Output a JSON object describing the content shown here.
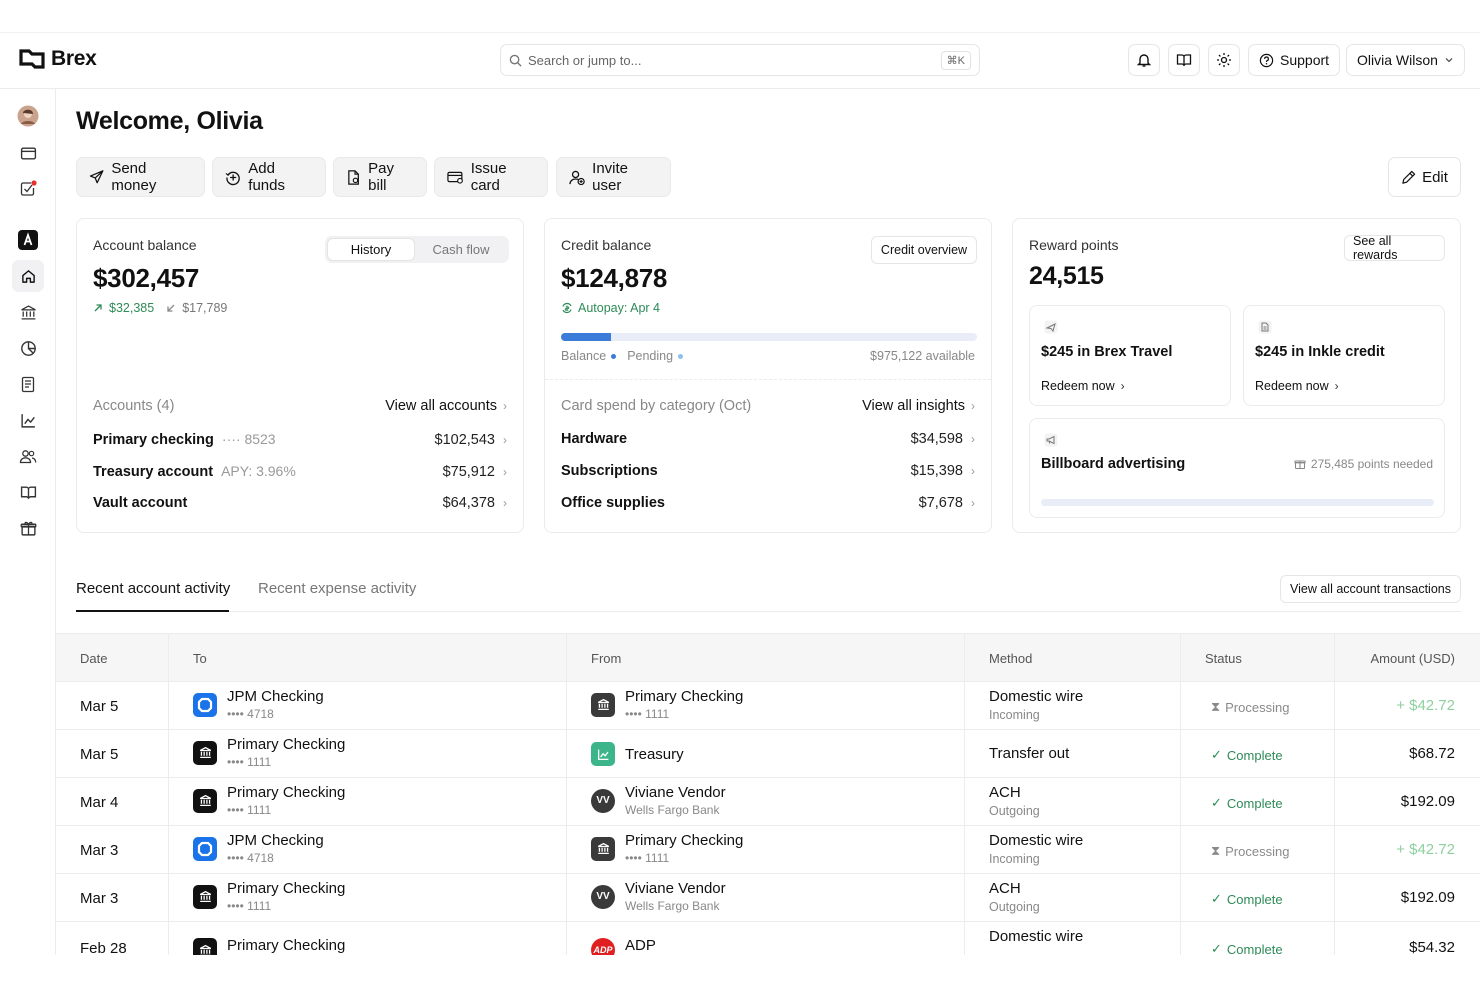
{
  "brand": {
    "name": "Brex"
  },
  "search": {
    "placeholder": "Search or jump to...",
    "shortcut": "⌘K"
  },
  "header": {
    "support_label": "Support",
    "user_name": "Olivia Wilson"
  },
  "welcome": "Welcome, Olivia",
  "actions": {
    "send_money": "Send money",
    "add_funds": "Add funds",
    "pay_bill": "Pay bill",
    "issue_card": "Issue card",
    "invite_user": "Invite user",
    "edit": "Edit"
  },
  "account_card": {
    "label": "Account balance",
    "balance": "$302,457",
    "tabs": [
      "History",
      "Cash flow"
    ],
    "inflow": "$32,385",
    "outflow": "$17,789",
    "accounts_label": "Accounts (4)",
    "view_all": "View all accounts",
    "rows": [
      {
        "name": "Primary checking",
        "sub": "···· 8523",
        "amount": "$102,543"
      },
      {
        "name": "Treasury account",
        "sub": "APY: 3.96%",
        "amount": "$75,912"
      },
      {
        "name": "Vault account",
        "sub": "",
        "amount": "$64,378"
      }
    ]
  },
  "credit_card": {
    "label": "Credit balance",
    "balance": "$124,878",
    "overview_btn": "Credit overview",
    "autopay": "Autopay: Apr 4",
    "legend_balance": "Balance",
    "legend_pending": "Pending",
    "available": "$975,122 available",
    "spend_label": "Card spend by category (Oct)",
    "view_insights": "View all insights",
    "rows": [
      {
        "name": "Hardware",
        "amount": "$34,598"
      },
      {
        "name": "Subscriptions",
        "amount": "$15,398"
      },
      {
        "name": "Office supplies",
        "amount": "$7,678"
      }
    ]
  },
  "rewards_card": {
    "label": "Reward points",
    "points": "24,515",
    "see_all": "See all rewards",
    "tiles": [
      {
        "title": "$245 in Brex Travel",
        "cta": "Redeem now"
      },
      {
        "title": "$245 in Inkle credit",
        "cta": "Redeem now"
      }
    ],
    "billboard": {
      "title": "Billboard advertising",
      "needed": "275,485 points needed"
    }
  },
  "tabs": {
    "recent_account": "Recent account activity",
    "recent_expense": "Recent expense activity",
    "view_all_tx": "View all account transactions"
  },
  "table": {
    "headers": {
      "date": "Date",
      "to": "To",
      "from": "From",
      "method": "Method",
      "status": "Status",
      "amount": "Amount (USD)"
    },
    "rows": [
      {
        "date": "Mar 5",
        "to": "JPM Checking",
        "to_sub": "•••• 4718",
        "from": "Primary Checking",
        "from_sub": "•••• 1111",
        "method": "Domestic wire",
        "method_sub": "Incoming",
        "status": "Processing",
        "amount": "+ $42.72"
      },
      {
        "date": "Mar 5",
        "to": "Primary Checking",
        "to_sub": "•••• 1111",
        "from": "Treasury",
        "from_sub": "",
        "method": "Transfer out",
        "method_sub": "",
        "status": "Complete",
        "amount": "$68.72"
      },
      {
        "date": "Mar 4",
        "to": "Primary Checking",
        "to_sub": "•••• 1111",
        "from": "Viviane Vendor",
        "from_sub": "Wells Fargo Bank",
        "method": "ACH",
        "method_sub": "Outgoing",
        "status": "Complete",
        "amount": "$192.09"
      },
      {
        "date": "Mar 3",
        "to": "JPM Checking",
        "to_sub": "•••• 4718",
        "from": "Primary Checking",
        "from_sub": "•••• 1111",
        "method": "Domestic wire",
        "method_sub": "Incoming",
        "status": "Processing",
        "amount": "+ $42.72"
      },
      {
        "date": "Mar 3",
        "to": "Primary Checking",
        "to_sub": "•••• 1111",
        "from": "Viviane Vendor",
        "from_sub": "Wells Fargo Bank",
        "method": "ACH",
        "method_sub": "Outgoing",
        "status": "Complete",
        "amount": "$192.09"
      },
      {
        "date": "Feb 28",
        "to": "Primary Checking",
        "to_sub": "",
        "from": "ADP",
        "from_sub": "",
        "method": "Domestic wire",
        "method_sub": "",
        "status": "Complete",
        "amount": "$54.32"
      }
    ]
  },
  "vendor_initials": "VV",
  "colors": {
    "accent_green": "#2e8b57",
    "processing": "#9a9a9a",
    "positive_amount": "#8fcf9f",
    "jpm_blue": "#1a73e8"
  }
}
